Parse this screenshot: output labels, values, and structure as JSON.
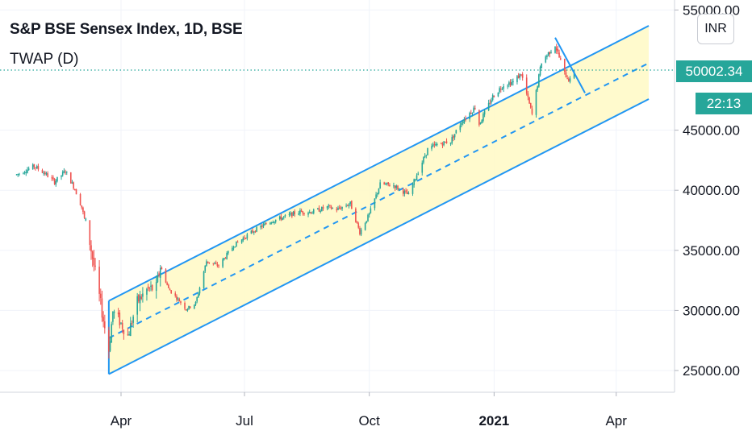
{
  "header": {
    "title": "S&P BSE Sensex Index, 1D, BSE",
    "indicator": "TWAP (D)"
  },
  "price_scale": {
    "currency": "INR",
    "last_price_label": "50002.34",
    "countdown_label": "22:13"
  },
  "colors": {
    "up": "#26a69a",
    "down": "#ef5350",
    "channel_line": "#2196f3",
    "channel_fill": "#fff9c4",
    "last_price_line": "#26a69a"
  },
  "chart_data": {
    "type": "candlestick",
    "symbol": "S&P BSE Sensex Index",
    "interval": "1D",
    "exchange": "BSE",
    "ylim": [
      22800,
      55500
    ],
    "yticks": [
      {
        "value": 25000,
        "label": "25000.00"
      },
      {
        "value": 30000,
        "label": "30000.00"
      },
      {
        "value": 35000,
        "label": "35000.00"
      },
      {
        "value": 40000,
        "label": "40000.00"
      },
      {
        "value": 45000,
        "label": "45000.00"
      },
      {
        "value": 55000,
        "label": "55000.00"
      }
    ],
    "xticks": [
      {
        "date": "2020-04-01",
        "label": "Apr",
        "bold": false
      },
      {
        "date": "2020-07-01",
        "label": "Jul",
        "bold": false
      },
      {
        "date": "2020-10-01",
        "label": "Oct",
        "bold": false
      },
      {
        "date": "2021-01-01",
        "label": "2021",
        "bold": true
      },
      {
        "date": "2021-04-01",
        "label": "Apr",
        "bold": false
      }
    ],
    "price_path": [
      [
        "2020-01-15",
        41300
      ],
      [
        "2020-01-28",
        42000
      ],
      [
        "2020-02-05",
        41400
      ],
      [
        "2020-02-12",
        40700
      ],
      [
        "2020-02-20",
        41600
      ],
      [
        "2020-02-27",
        40100
      ],
      [
        "2020-03-03",
        38600
      ],
      [
        "2020-03-09",
        35700
      ],
      [
        "2020-03-13",
        33100
      ],
      [
        "2020-03-19",
        29200
      ],
      [
        "2020-03-23",
        26700
      ],
      [
        "2020-03-26",
        29900
      ],
      [
        "2020-03-31",
        29100
      ],
      [
        "2020-04-06",
        27900
      ],
      [
        "2020-04-13",
        30700
      ],
      [
        "2020-04-20",
        31700
      ],
      [
        "2020-04-27",
        31900
      ],
      [
        "2020-04-30",
        33700
      ],
      [
        "2020-05-06",
        31800
      ],
      [
        "2020-05-14",
        30800
      ],
      [
        "2020-05-19",
        30100
      ],
      [
        "2020-05-26",
        30600
      ],
      [
        "2020-06-03",
        34100
      ],
      [
        "2020-06-12",
        33700
      ],
      [
        "2020-06-23",
        35400
      ],
      [
        "2020-07-06",
        36500
      ],
      [
        "2020-07-20",
        37400
      ],
      [
        "2020-07-31",
        37800
      ],
      [
        "2020-08-10",
        38200
      ],
      [
        "2020-08-20",
        38200
      ],
      [
        "2020-08-31",
        38600
      ],
      [
        "2020-09-07",
        38400
      ],
      [
        "2020-09-17",
        38900
      ],
      [
        "2020-09-24",
        36500
      ],
      [
        "2020-10-01",
        38000
      ],
      [
        "2020-10-09",
        40500
      ],
      [
        "2020-10-19",
        40400
      ],
      [
        "2020-10-30",
        39600
      ],
      [
        "2020-11-05",
        41300
      ],
      [
        "2020-11-13",
        43400
      ],
      [
        "2020-11-20",
        43800
      ],
      [
        "2020-11-30",
        44100
      ],
      [
        "2020-12-08",
        45700
      ],
      [
        "2020-12-18",
        46900
      ],
      [
        "2020-12-21",
        45500
      ],
      [
        "2020-12-31",
        47800
      ],
      [
        "2021-01-08",
        48800
      ],
      [
        "2021-01-15",
        49000
      ],
      [
        "2021-01-21",
        49700
      ],
      [
        "2021-01-29",
        46300
      ],
      [
        "2021-02-05",
        50700
      ],
      [
        "2021-02-15",
        52100
      ],
      [
        "2021-02-22",
        49700
      ],
      [
        "2021-02-26",
        49100
      ],
      [
        "2021-03-01",
        50000
      ]
    ],
    "regression_channel": {
      "start_date": "2020-03-23",
      "end_date": "2021-04-25",
      "upper_start": 30800,
      "mid_start": 27700,
      "lower_start": 24700,
      "slope_per_day": 57.5
    },
    "trend_line": {
      "start": [
        "2021-02-15",
        52700
      ],
      "end": [
        "2021-03-09",
        48100
      ]
    },
    "last_price": 50002.34
  }
}
